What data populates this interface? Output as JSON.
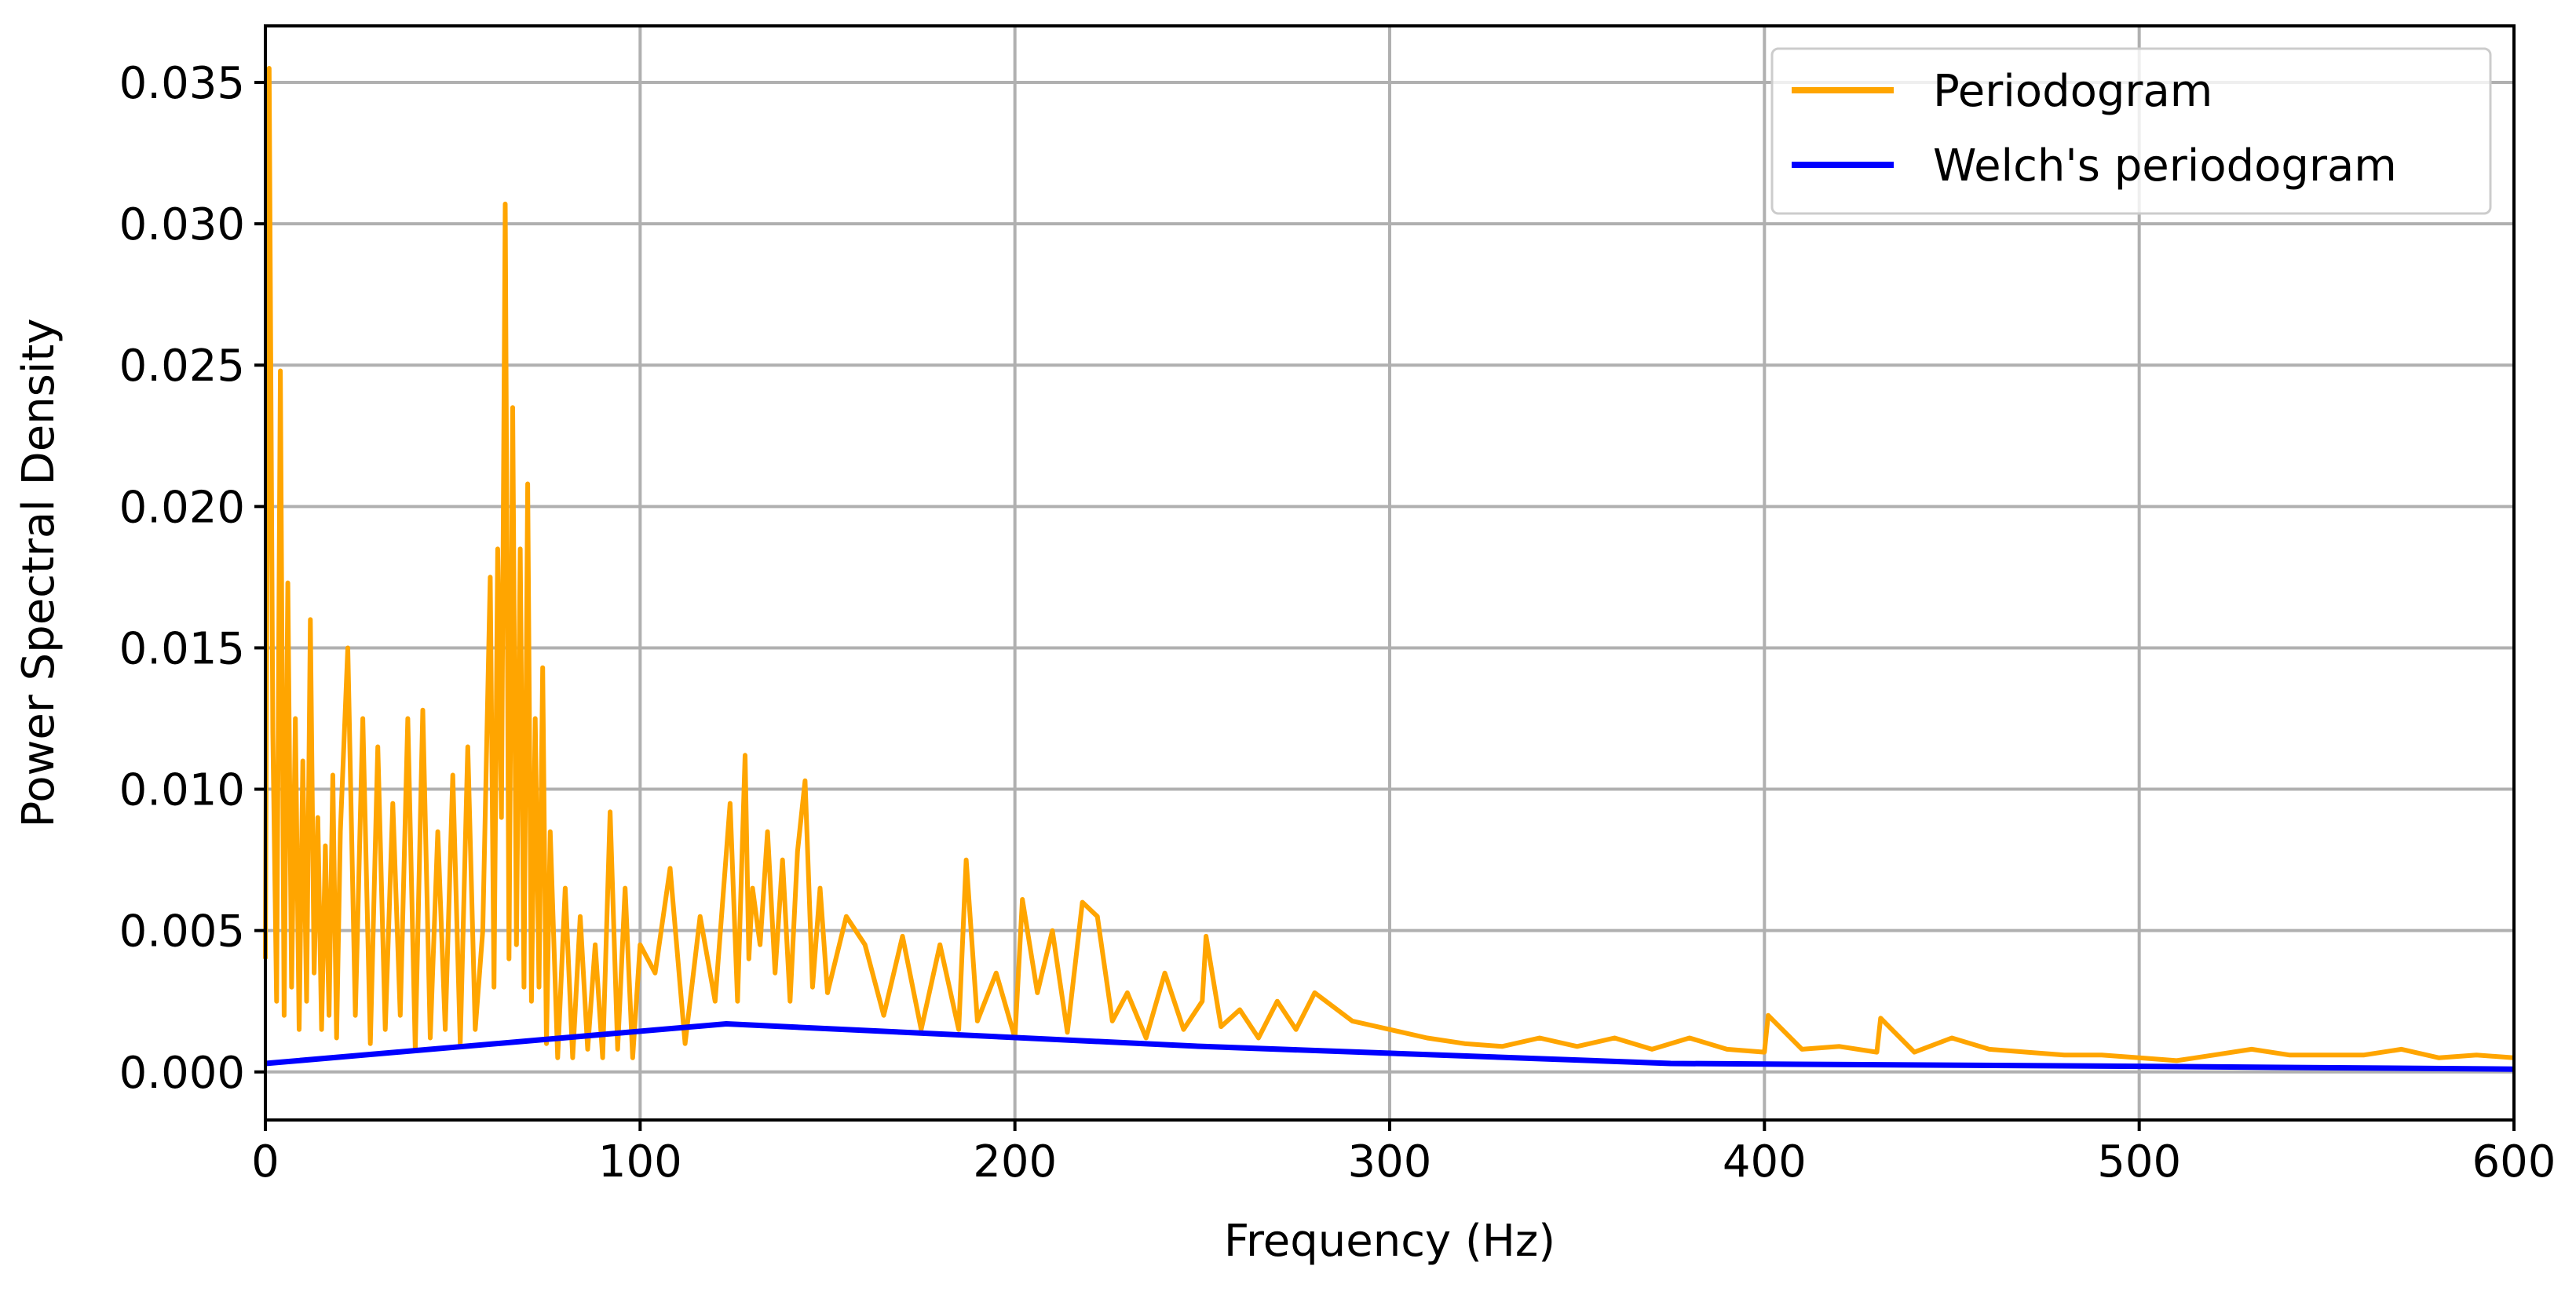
{
  "chart_data": {
    "type": "line",
    "title": "",
    "xlabel": "Frequency (Hz)",
    "ylabel": "Power Spectral Density",
    "xlim": [
      0,
      600
    ],
    "ylim": [
      -0.0017,
      0.037
    ],
    "grid": true,
    "legend_position": "top-right",
    "x_ticks": [
      0,
      100,
      200,
      300,
      400,
      500,
      600
    ],
    "x_tick_labels": [
      "0",
      "100",
      "200",
      "300",
      "400",
      "500",
      "600"
    ],
    "y_ticks": [
      0.0,
      0.005,
      0.01,
      0.015,
      0.02,
      0.025,
      0.03,
      0.035
    ],
    "y_tick_labels": [
      "0.000",
      "0.005",
      "0.010",
      "0.015",
      "0.020",
      "0.025",
      "0.030",
      "0.035"
    ],
    "series": [
      {
        "name": "Periodogram",
        "color": "#FFA500",
        "x": [
          0,
          1,
          2,
          3,
          4,
          5,
          6,
          7,
          8,
          9,
          10,
          11,
          12,
          13,
          14,
          15,
          16,
          17,
          18,
          19,
          20,
          22,
          24,
          26,
          28,
          30,
          32,
          34,
          36,
          38,
          40,
          42,
          44,
          46,
          48,
          50,
          52,
          54,
          56,
          58,
          60,
          61,
          62,
          63,
          64,
          65,
          66,
          67,
          68,
          69,
          70,
          71,
          72,
          73,
          74,
          75,
          76,
          78,
          80,
          82,
          84,
          86,
          88,
          90,
          92,
          94,
          96,
          98,
          100,
          104,
          108,
          112,
          116,
          120,
          124,
          126,
          128,
          129,
          130,
          132,
          134,
          136,
          138,
          140,
          142,
          144,
          146,
          148,
          150,
          155,
          160,
          165,
          170,
          175,
          180,
          185,
          187,
          190,
          195,
          200,
          202,
          206,
          210,
          214,
          218,
          222,
          226,
          230,
          235,
          240,
          245,
          250,
          251,
          255,
          260,
          265,
          270,
          275,
          280,
          290,
          300,
          310,
          320,
          330,
          340,
          350,
          360,
          370,
          380,
          390,
          400,
          401,
          410,
          420,
          430,
          431,
          440,
          450,
          460,
          470,
          480,
          490,
          500,
          510,
          520,
          530,
          540,
          550,
          560,
          570,
          580,
          590,
          600
        ],
        "y": [
          0.004,
          0.0355,
          0.012,
          0.0025,
          0.0248,
          0.002,
          0.0173,
          0.003,
          0.0125,
          0.0015,
          0.011,
          0.0025,
          0.016,
          0.0035,
          0.009,
          0.0015,
          0.008,
          0.002,
          0.0105,
          0.0012,
          0.0085,
          0.015,
          0.002,
          0.0125,
          0.001,
          0.0115,
          0.0015,
          0.0095,
          0.002,
          0.0125,
          0.0008,
          0.0128,
          0.0012,
          0.0085,
          0.0015,
          0.0105,
          0.001,
          0.0115,
          0.0015,
          0.005,
          0.0175,
          0.003,
          0.0185,
          0.009,
          0.0307,
          0.004,
          0.0235,
          0.0045,
          0.0185,
          0.003,
          0.0208,
          0.0025,
          0.0125,
          0.003,
          0.0143,
          0.001,
          0.0085,
          0.0005,
          0.0065,
          0.0005,
          0.0055,
          0.0008,
          0.0045,
          0.0005,
          0.0092,
          0.0008,
          0.0065,
          0.0005,
          0.0045,
          0.0035,
          0.0072,
          0.001,
          0.0055,
          0.0025,
          0.0095,
          0.0025,
          0.0112,
          0.004,
          0.0065,
          0.0045,
          0.0085,
          0.0035,
          0.0075,
          0.0025,
          0.0078,
          0.0103,
          0.003,
          0.0065,
          0.0028,
          0.0055,
          0.0045,
          0.002,
          0.0048,
          0.0015,
          0.0045,
          0.0015,
          0.0075,
          0.0018,
          0.0035,
          0.0012,
          0.0061,
          0.0028,
          0.005,
          0.0014,
          0.006,
          0.0055,
          0.0018,
          0.0028,
          0.0012,
          0.0035,
          0.0015,
          0.0025,
          0.0048,
          0.0016,
          0.0022,
          0.0012,
          0.0025,
          0.0015,
          0.0028,
          0.0018,
          0.0015,
          0.0012,
          0.001,
          0.0009,
          0.0012,
          0.0009,
          0.0012,
          0.0008,
          0.0012,
          0.0008,
          0.0007,
          0.002,
          0.0008,
          0.0009,
          0.0007,
          0.0019,
          0.0007,
          0.0012,
          0.0008,
          0.0007,
          0.0006,
          0.0006,
          0.0005,
          0.0004,
          0.0006,
          0.0008,
          0.0006,
          0.0006,
          0.0006,
          0.0008,
          0.0005,
          0.0006,
          0.0005
        ]
      },
      {
        "name": "Welch's periodogram",
        "color": "#0000FF",
        "x": [
          0,
          123,
          250,
          375,
          500,
          600
        ],
        "y": [
          0.0003,
          0.0017,
          0.0009,
          0.0003,
          0.0002,
          0.0001
        ]
      }
    ]
  }
}
